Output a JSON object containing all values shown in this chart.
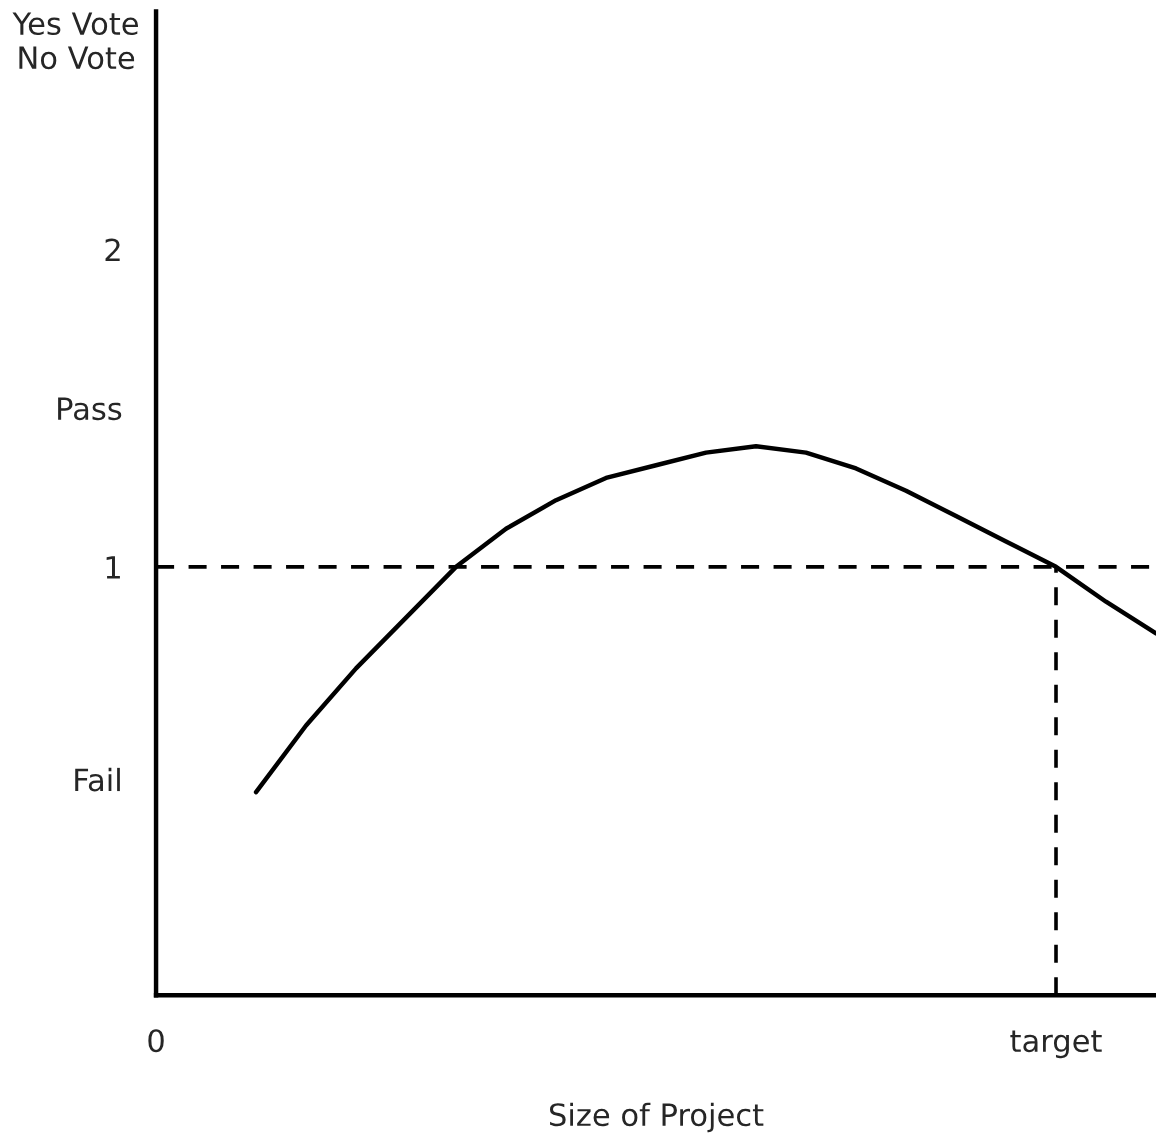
{
  "chart_data": {
    "type": "line",
    "xlabel": "Size of Project",
    "ylabel": "Yes Vote\nNo Vote",
    "categories": [
      "0",
      null,
      null,
      null,
      null,
      null,
      null,
      null,
      null,
      null,
      null,
      null,
      null,
      null,
      null,
      null,
      null,
      null,
      "target",
      null,
      null
    ],
    "series": [
      {
        "color": "#000000",
        "values": [
          null,
          null,
          0.29,
          0.5,
          0.68,
          0.84,
          1.0,
          1.12,
          1.21,
          1.28,
          1.32,
          1.36,
          1.38,
          1.36,
          1.31,
          1.24,
          1.16,
          1.08,
          1.0,
          0.89,
          0.79
        ]
      }
    ],
    "ylim": [
      -0.35,
      2.75
    ],
    "yticks": [
      {
        "value": 0.33,
        "label": "Fail"
      },
      1,
      {
        "value": 1.5,
        "label": "Pass"
      },
      2
    ],
    "ref_lines": [
      {
        "axis": "y",
        "value": 1,
        "color": "#000000",
        "line_style": "dashed"
      },
      {
        "axis": "x",
        "value": "target",
        "color": "#000000",
        "line_style": "dashed"
      }
    ],
    "grid": false,
    "legend": false,
    "marker": "none",
    "line_style": "solid"
  }
}
